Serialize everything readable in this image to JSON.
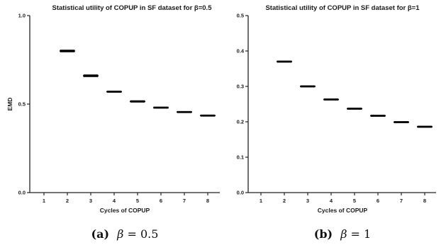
{
  "chart_data": [
    {
      "type": "box",
      "title": "Statistical utility of COPUP in SF dataset for β=0.5",
      "xlabel": "Cycles of COPUP",
      "ylabel": "EMD",
      "ylim": [
        0,
        1.0
      ],
      "yticks": [
        "0.0",
        "0.5",
        "1.0"
      ],
      "categories": [
        "1",
        "2",
        "3",
        "4",
        "5",
        "6",
        "7",
        "8"
      ],
      "values": [
        null,
        0.8,
        0.66,
        0.57,
        0.515,
        0.48,
        0.455,
        0.435
      ],
      "spread": [
        0,
        0.006,
        0.006,
        0.004,
        0.005,
        0.003,
        0.004,
        0.002
      ],
      "caption": {
        "tag": "(a)",
        "symbol": "β",
        "rest": " = 0.5"
      }
    },
    {
      "type": "box",
      "title": "Statistical utility of COPUP in SF dataset for β=1",
      "xlabel": "Cycles of COPUP",
      "ylabel": "",
      "ylim": [
        0,
        0.5
      ],
      "yticks": [
        "0.0",
        "0.1",
        "0.2",
        "0.3",
        "0.4",
        "0.5"
      ],
      "categories": [
        "1",
        "2",
        "3",
        "4",
        "5",
        "6",
        "7",
        "8"
      ],
      "values": [
        null,
        0.37,
        0.3,
        0.263,
        0.237,
        0.217,
        0.199,
        0.186
      ],
      "spread": [
        0,
        0.002,
        0.001,
        0.002,
        0.002,
        0.002,
        0.002,
        0.002
      ],
      "caption": {
        "tag": "(b)",
        "symbol": "β",
        "rest": " = 1"
      }
    }
  ]
}
